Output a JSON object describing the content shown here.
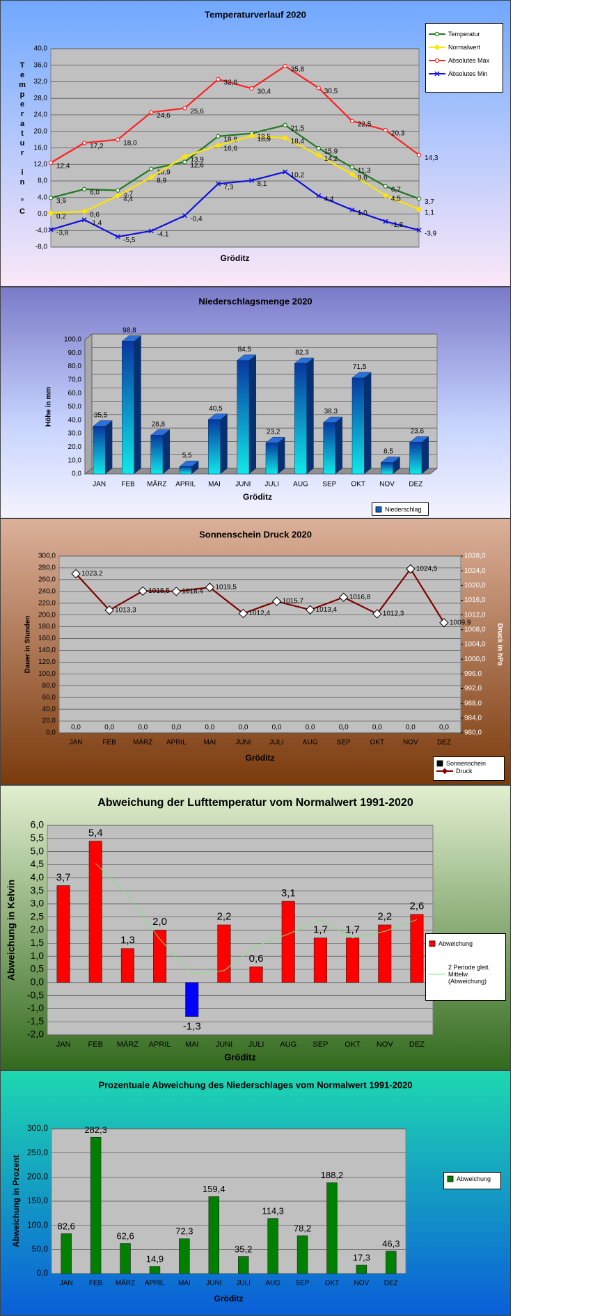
{
  "chart_data": [
    {
      "type": "line",
      "title": "Temperaturverlauf  2020",
      "ylabel": "Temperatur in °C",
      "xlabel": "Gröditz",
      "categories": [
        null,
        null,
        null,
        null,
        null,
        null,
        null,
        null,
        null,
        null,
        null,
        null
      ],
      "ylim": [
        -8,
        40
      ],
      "yticks": [
        {
          "value": -8,
          "label": "-8,0"
        },
        {
          "value": -4,
          "label": "-4,0"
        },
        {
          "value": 0,
          "label": "0,0"
        },
        {
          "value": 4,
          "label": "4,0"
        },
        {
          "value": 8,
          "label": "8,0"
        },
        {
          "value": 12,
          "label": "12,0"
        },
        {
          "value": 16,
          "label": "16,0"
        },
        {
          "value": 20,
          "label": "20,0"
        },
        {
          "value": 24,
          "label": "24,0"
        },
        {
          "value": 28,
          "label": "28,0"
        },
        {
          "value": 32,
          "label": "32,0"
        },
        {
          "value": 36,
          "label": "36,0"
        },
        {
          "value": 40,
          "label": "40,0"
        }
      ],
      "grid": true,
      "legend": "top-right",
      "series": [
        {
          "name": "Temperatur",
          "color": "#1e7a1e",
          "marker": "circle",
          "values": [
            3.9,
            6.0,
            5.7,
            10.9,
            12.6,
            18.8,
            19.5,
            21.5,
            15.9,
            11.3,
            6.7,
            3.7
          ],
          "value_labels": [
            "3,9",
            "6,0",
            "5,7",
            "10,9",
            "12,6",
            "18,8",
            "19,5",
            "21,5",
            "15,9",
            "11,3",
            "6,7",
            "3,7"
          ]
        },
        {
          "name": "Normalwert",
          "color": "#ffe600",
          "marker": "diamond",
          "values": [
            0.2,
            0.6,
            4.4,
            8.9,
            13.9,
            16.6,
            18.9,
            18.4,
            14.2,
            9.6,
            4.5,
            1.1
          ],
          "value_labels": [
            "0,2",
            "0,6",
            "4,4",
            "8,9",
            "13,9",
            "16,6",
            "18,9",
            "18,4",
            "14,2",
            "9,6",
            "4,5",
            "1,1"
          ]
        },
        {
          "name": "Absolutes Max",
          "color": "#ff2020",
          "marker": "circle",
          "values": [
            12.4,
            17.2,
            18.0,
            24.6,
            25.6,
            32.6,
            30.4,
            35.8,
            30.5,
            22.5,
            20.3,
            14.3
          ],
          "value_labels": [
            "12,4",
            "17,2",
            "18,0",
            "24,6",
            "25,6",
            "32,6",
            "30,4",
            "35,8",
            "30,5",
            "22,5",
            "20,3",
            "14,3"
          ]
        },
        {
          "name": "Absolutes Min",
          "color": "#1010e0",
          "marker": "x",
          "values": [
            -3.8,
            -1.4,
            -5.5,
            -4.1,
            -0.4,
            7.3,
            8.1,
            10.2,
            4.4,
            1.0,
            -1.8,
            -3.9
          ],
          "value_labels": [
            "-3,8",
            "-1,4",
            "-5,5",
            "-4,1",
            "-0,4",
            "7,3",
            "8,1",
            "10,2",
            "4,4",
            "1,0",
            "-1,8",
            "-3,9"
          ]
        }
      ]
    },
    {
      "type": "bar",
      "three_d": true,
      "title": "Niederschlagsmenge  2020",
      "ylabel": "Höhe in mm",
      "xlabel": "Gröditz",
      "categories": [
        "JAN",
        "FEB",
        "MÄRZ",
        "APRIL",
        "MAI",
        "JUNI",
        "JULI",
        "AUG",
        "SEP",
        "OKT",
        "NOV",
        "DEZ"
      ],
      "ylim": [
        0,
        100
      ],
      "yticks": [
        {
          "value": 0,
          "label": "0,0"
        },
        {
          "value": 10,
          "label": "10,0"
        },
        {
          "value": 20,
          "label": "20,0"
        },
        {
          "value": 30,
          "label": "30,0"
        },
        {
          "value": 40,
          "label": "40,0"
        },
        {
          "value": 50,
          "label": "50,0"
        },
        {
          "value": 60,
          "label": "60,0"
        },
        {
          "value": 70,
          "label": "70,0"
        },
        {
          "value": 80,
          "label": "80,0"
        },
        {
          "value": 90,
          "label": "90,0"
        },
        {
          "value": 100,
          "label": "100,0"
        }
      ],
      "grid": true,
      "legend": "bottom-right",
      "series": [
        {
          "name": "Niederschlag",
          "color": "#1060c0",
          "values": [
            35.5,
            98.8,
            28.8,
            5.5,
            40.5,
            84.5,
            23.2,
            82.3,
            38.3,
            71.5,
            8.5,
            23.6
          ],
          "value_labels": [
            "35,5",
            "98,8",
            "28,8",
            "5,5",
            "40,5",
            "84,5",
            "23,2",
            "82,3",
            "38,3",
            "71,5",
            "8,5",
            "23,6"
          ]
        }
      ]
    },
    {
      "type": "combo",
      "title": "Sonnenschein   Druck 2020",
      "ylabel": "Dauer in Stunden",
      "y2label": "Druck in hPa",
      "xlabel": "Gröditz",
      "categories": [
        "JAN",
        "FEB",
        "MÄRZ",
        "APRIL",
        "MAI",
        "JUNI",
        "JULI",
        "AUG",
        "SEP",
        "OKT",
        "NOV",
        "DEZ"
      ],
      "ylim": [
        0,
        300
      ],
      "yticks": [
        {
          "value": 0,
          "label": "0,0"
        },
        {
          "value": 20,
          "label": "20,0"
        },
        {
          "value": 40,
          "label": "40,0"
        },
        {
          "value": 60,
          "label": "60,0"
        },
        {
          "value": 80,
          "label": "80,0"
        },
        {
          "value": 100,
          "label": "100,0"
        },
        {
          "value": 120,
          "label": "120,0"
        },
        {
          "value": 140,
          "label": "140,0"
        },
        {
          "value": 160,
          "label": "160,0"
        },
        {
          "value": 180,
          "label": "180,0"
        },
        {
          "value": 200,
          "label": "200,0"
        },
        {
          "value": 220,
          "label": "220,0"
        },
        {
          "value": 240,
          "label": "240,0"
        },
        {
          "value": 260,
          "label": "260,0"
        },
        {
          "value": 280,
          "label": "280,0"
        },
        {
          "value": 300,
          "label": "300,0"
        }
      ],
      "y2lim": [
        980,
        1028
      ],
      "y2ticks": [
        {
          "value": 980,
          "label": "980,0"
        },
        {
          "value": 984,
          "label": "984,0"
        },
        {
          "value": 988,
          "label": "988,0"
        },
        {
          "value": 992,
          "label": "992,0"
        },
        {
          "value": 996,
          "label": "996,0"
        },
        {
          "value": 1000,
          "label": "1000,0"
        },
        {
          "value": 1004,
          "label": "1004,0"
        },
        {
          "value": 1008,
          "label": "1008,0"
        },
        {
          "value": 1012,
          "label": "1012,0"
        },
        {
          "value": 1016,
          "label": "1016,0"
        },
        {
          "value": 1020,
          "label": "1020,0"
        },
        {
          "value": 1024,
          "label": "1024,0"
        },
        {
          "value": 1028,
          "label": "1028,0"
        }
      ],
      "grid": true,
      "legend": "bottom-right",
      "series": [
        {
          "name": "Sonnenschein",
          "type": "bar",
          "color": "#000000",
          "values": [
            0,
            0,
            0,
            0,
            0,
            0,
            0,
            0,
            0,
            0,
            0,
            0
          ],
          "value_labels": [
            "0,0",
            "0,0",
            "0,0",
            "0,0",
            "0,0",
            "0,0",
            "0,0",
            "0,0",
            "0,0",
            "0,0",
            "0,0",
            "0,0"
          ]
        },
        {
          "name": "Druck",
          "type": "line",
          "axis": "y2",
          "color": "#800000",
          "marker": "diamond",
          "values": [
            1023.2,
            1013.3,
            1018.5,
            1018.4,
            1019.5,
            1012.4,
            1015.7,
            1013.4,
            1016.8,
            1012.3,
            1024.5,
            1009.9
          ],
          "value_labels": [
            "1023,2",
            "1013,3",
            "1018,5",
            "1018,4",
            "1019,5",
            "1012,4",
            "1015,7",
            "1013,4",
            "1016,8",
            "1012,3",
            "1024,5",
            "1009,9"
          ]
        }
      ]
    },
    {
      "type": "bar",
      "title": "Abweichung  der Lufttemperatur  vom Normalwert 1991-2020",
      "ylabel": "Abweichung in Kelvin",
      "xlabel": "Gröditz",
      "categories": [
        "JAN",
        "FEB",
        "MÄRZ",
        "APRIL",
        "MAI",
        "JUNI",
        "JULI",
        "AUG",
        "SEP",
        "OKT",
        "NOV",
        "DEZ"
      ],
      "ylim": [
        -2,
        6
      ],
      "yticks": [
        {
          "value": -2,
          "label": "-2,0"
        },
        {
          "value": -1.5,
          "label": "-1,5"
        },
        {
          "value": -1,
          "label": "-1,0"
        },
        {
          "value": -0.5,
          "label": "-0,5"
        },
        {
          "value": 0,
          "label": "0,0"
        },
        {
          "value": 0.5,
          "label": "0,5"
        },
        {
          "value": 1,
          "label": "1,0"
        },
        {
          "value": 1.5,
          "label": "1,5"
        },
        {
          "value": 2,
          "label": "2,0"
        },
        {
          "value": 2.5,
          "label": "2,5"
        },
        {
          "value": 3,
          "label": "3,0"
        },
        {
          "value": 3.5,
          "label": "3,5"
        },
        {
          "value": 4,
          "label": "4,0"
        },
        {
          "value": 4.5,
          "label": "4,5"
        },
        {
          "value": 5,
          "label": "5,0"
        },
        {
          "value": 5.5,
          "label": "5,5"
        },
        {
          "value": 6,
          "label": "6,0"
        }
      ],
      "grid": true,
      "legend": "right",
      "series": [
        {
          "name": "Abweichung",
          "color": "#ff0000",
          "negative_color": "#0000ff",
          "values": [
            3.7,
            5.4,
            1.3,
            2.0,
            -1.3,
            2.2,
            0.6,
            3.1,
            1.7,
            1.7,
            2.2,
            2.6
          ],
          "value_labels": [
            "3,7",
            "5,4",
            "1,3",
            "2,0",
            "-1,3",
            "2,2",
            "0,6",
            "3,1",
            "1,7",
            "1,7",
            "2,2",
            "2,6"
          ]
        },
        {
          "name": "2 Periode gleit. Mittelw. (Abweichung)",
          "type": "line",
          "color": "#80e080",
          "values": [
            null,
            4.55,
            3.35,
            1.65,
            0.35,
            0.45,
            1.4,
            1.85,
            2.4,
            1.7,
            1.95,
            2.4
          ]
        }
      ]
    },
    {
      "type": "bar",
      "title": "Prozentuale  Abweichung  des  Niederschlages  vom Normalwert  1991-2020",
      "ylabel": "Abweichung in Prozent",
      "xlabel": "Gröditz",
      "categories": [
        "JAN",
        "FEB",
        "MÄRZ",
        "APRIL",
        "MAI",
        "JUNI",
        "JULI",
        "AUG",
        "SEP",
        "OKT",
        "NOV",
        "DEZ"
      ],
      "ylim": [
        0,
        300
      ],
      "yticks": [
        {
          "value": 0,
          "label": "0,0"
        },
        {
          "value": 50,
          "label": "50,0"
        },
        {
          "value": 100,
          "label": "100,0"
        },
        {
          "value": 150,
          "label": "150,0"
        },
        {
          "value": 200,
          "label": "200,0"
        },
        {
          "value": 250,
          "label": "250,0"
        },
        {
          "value": 300,
          "label": "300,0"
        }
      ],
      "grid": true,
      "legend": "right",
      "series": [
        {
          "name": "Abweichung",
          "color": "#008000",
          "values": [
            82.6,
            282.3,
            62.6,
            14.9,
            72.3,
            159.4,
            35.2,
            114.3,
            78.2,
            188.2,
            17.3,
            46.3
          ],
          "value_labels": [
            "82,6",
            "282,3",
            "62,6",
            "14,9",
            "72,3",
            "159,4",
            "35,2",
            "114,3",
            "78,2",
            "188,2",
            "17,3",
            "46,3"
          ]
        }
      ]
    }
  ]
}
